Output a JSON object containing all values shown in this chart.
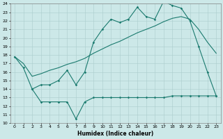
{
  "xlabel": "Humidex (Indice chaleur)",
  "background_color": "#cce8e8",
  "grid_color": "#aacccc",
  "line_color": "#1a7a6e",
  "line1_x": [
    0,
    1,
    2,
    3,
    4,
    5,
    6,
    7,
    8,
    9,
    10,
    11,
    12,
    13,
    14,
    15,
    16,
    17,
    18,
    19,
    20,
    21,
    22,
    23
  ],
  "line1_y": [
    17.8,
    16.5,
    14.0,
    14.5,
    14.5,
    15.0,
    16.2,
    14.5,
    16.0,
    19.5,
    21.0,
    22.2,
    21.8,
    22.2,
    23.6,
    22.5,
    22.2,
    24.3,
    23.8,
    23.5,
    22.0,
    19.0,
    16.0,
    13.2
  ],
  "line2_x": [
    0,
    1,
    2,
    3,
    4,
    5,
    6,
    7,
    8,
    9,
    10,
    11,
    12,
    13,
    14,
    15,
    16,
    17,
    18,
    19,
    20,
    21,
    22,
    23
  ],
  "line2_y": [
    17.8,
    17.0,
    15.5,
    15.8,
    16.2,
    16.5,
    16.9,
    17.2,
    17.6,
    18.2,
    18.7,
    19.2,
    19.6,
    20.1,
    20.6,
    21.0,
    21.4,
    21.9,
    22.3,
    22.5,
    22.2,
    21.0,
    19.5,
    18.2
  ],
  "line3_x": [
    2,
    3,
    4,
    5,
    6,
    7,
    8,
    9,
    10,
    11,
    12,
    13,
    14,
    15,
    16,
    17,
    18,
    19,
    20,
    21,
    22,
    23
  ],
  "line3_y": [
    14.0,
    12.5,
    12.5,
    12.5,
    12.5,
    10.5,
    12.5,
    13.0,
    13.0,
    13.0,
    13.0,
    13.0,
    13.0,
    13.0,
    13.0,
    13.0,
    13.2,
    13.2,
    13.2,
    13.2,
    13.2,
    13.2
  ],
  "ylim": [
    10,
    24
  ],
  "xlim": [
    -0.5,
    23.5
  ],
  "yticks": [
    10,
    11,
    12,
    13,
    14,
    15,
    16,
    17,
    18,
    19,
    20,
    21,
    22,
    23,
    24
  ],
  "xticks": [
    0,
    1,
    2,
    3,
    4,
    5,
    6,
    7,
    8,
    9,
    10,
    11,
    12,
    13,
    14,
    15,
    16,
    17,
    18,
    19,
    20,
    21,
    22,
    23
  ]
}
